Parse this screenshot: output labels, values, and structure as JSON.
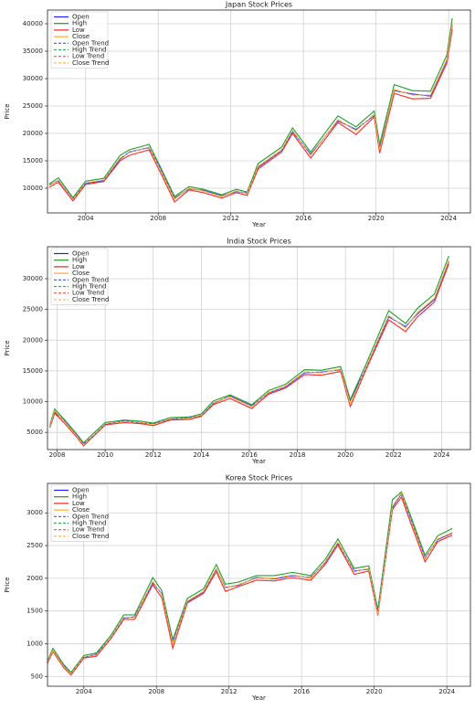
{
  "chart_data": [
    {
      "type": "line",
      "title": "Japan Stock Prices",
      "x_label": "Year",
      "y_label": "Price",
      "grid": true,
      "legend": "upper left",
      "xlim": [
        2001.9,
        2025.2
      ],
      "xticks": [
        2004,
        2008,
        2012,
        2016,
        2020,
        2024
      ],
      "ylim": [
        5500,
        42500
      ],
      "yticks": [
        10000,
        15000,
        20000,
        25000,
        30000,
        35000,
        40000
      ],
      "x": [
        2002.0,
        2002.5,
        2003.3,
        2004.0,
        2005.0,
        2005.9,
        2006.4,
        2007.5,
        2008.1,
        2008.9,
        2009.7,
        2010.5,
        2011.5,
        2012.3,
        2012.9,
        2013.5,
        2014.8,
        2015.4,
        2016.4,
        2017.9,
        2018.9,
        2019.9,
        2020.2,
        2021.0,
        2022.0,
        2023.0,
        2023.9,
        2024.2
      ],
      "series": [
        {
          "name": "Open",
          "color": "#1f1fff",
          "linestyle": "solid",
          "values": [
            10600,
            11400,
            8100,
            10900,
            11400,
            15300,
            16600,
            17400,
            13700,
            8200,
            9900,
            9600,
            8600,
            9400,
            9100,
            13800,
            16900,
            20300,
            16200,
            22300,
            20700,
            23300,
            17400,
            27800,
            27200,
            26800,
            33300,
            39700
          ]
        },
        {
          "name": "High",
          "color": "#1a9a1a",
          "linestyle": "solid",
          "values": [
            10800,
            11900,
            8300,
            11300,
            11800,
            16000,
            17000,
            18000,
            14000,
            8500,
            10300,
            9800,
            8800,
            9800,
            9300,
            14500,
            17500,
            21000,
            16600,
            23200,
            21200,
            24100,
            18000,
            28900,
            27800,
            27700,
            34300,
            41000
          ]
        },
        {
          "name": "Low",
          "color": "#ee2222",
          "linestyle": "solid",
          "values": [
            10200,
            11100,
            7700,
            10700,
            11200,
            15000,
            16000,
            17000,
            13000,
            7500,
            9700,
            9200,
            8200,
            9200,
            8700,
            13500,
            16600,
            20000,
            15500,
            22000,
            19800,
            23000,
            16400,
            27300,
            26300,
            26400,
            32800,
            39000
          ]
        },
        {
          "name": "Close",
          "color": "#ffaa22",
          "linestyle": "solid",
          "values": [
            10500,
            11500,
            8000,
            11000,
            11500,
            15500,
            16500,
            17500,
            13500,
            8000,
            10000,
            9500,
            8500,
            9500,
            9000,
            14000,
            17000,
            20500,
            16000,
            22500,
            20500,
            23500,
            17000,
            28000,
            27000,
            27000,
            33500,
            40000
          ]
        },
        {
          "name": "Open Trend",
          "color": "#3355ff",
          "linestyle": "dashed",
          "values": [
            10600,
            11400,
            8100,
            10900,
            11400,
            15300,
            16600,
            17400,
            13700,
            8200,
            9900,
            9600,
            8600,
            9400,
            9100,
            13800,
            16900,
            20300,
            16200,
            22300,
            20700,
            23300,
            17400,
            27800,
            27200,
            26800,
            33300,
            39700
          ]
        },
        {
          "name": "High Trend",
          "color": "#33aa55",
          "linestyle": "dashed",
          "values": [
            10800,
            11900,
            8300,
            11300,
            11800,
            16000,
            17000,
            18000,
            14000,
            8500,
            10300,
            9800,
            8800,
            9800,
            9300,
            14500,
            17500,
            21000,
            16600,
            23200,
            21200,
            24100,
            18000,
            28900,
            27800,
            27700,
            34300,
            41000
          ]
        },
        {
          "name": "Low Trend",
          "color": "#ff4444",
          "linestyle": "dashed",
          "values": [
            10200,
            11100,
            7700,
            10700,
            11200,
            15000,
            16000,
            17000,
            13000,
            7500,
            9700,
            9200,
            8200,
            9200,
            8700,
            13500,
            16600,
            20000,
            15500,
            22000,
            19800,
            23000,
            16400,
            27300,
            26300,
            26400,
            32800,
            39000
          ]
        },
        {
          "name": "Close Trend",
          "color": "#ffbb55",
          "linestyle": "dashed",
          "values": [
            10500,
            11500,
            8000,
            11000,
            11500,
            15500,
            16500,
            17500,
            13500,
            8000,
            10000,
            9500,
            8500,
            9500,
            9000,
            14000,
            17000,
            20500,
            16000,
            22500,
            20500,
            23500,
            17000,
            28000,
            27000,
            27000,
            33500,
            40000
          ]
        }
      ]
    },
    {
      "type": "line",
      "title": "India Stock Prices",
      "x_label": "Year",
      "y_label": "Price",
      "grid": true,
      "legend": "upper left",
      "xlim": [
        2007.6,
        2025.2
      ],
      "xticks": [
        2008,
        2010,
        2012,
        2014,
        2016,
        2018,
        2020,
        2022,
        2024
      ],
      "ylim": [
        2200,
        35200
      ],
      "yticks": [
        5000,
        10000,
        15000,
        20000,
        25000,
        30000
      ],
      "x": [
        2007.7,
        2007.9,
        2008.3,
        2008.8,
        2009.1,
        2009.5,
        2010.0,
        2010.8,
        2011.5,
        2012.0,
        2012.7,
        2013.5,
        2014.0,
        2014.5,
        2015.2,
        2016.1,
        2016.8,
        2017.5,
        2018.3,
        2019.0,
        2019.8,
        2020.2,
        2020.9,
        2021.8,
        2022.5,
        2023.0,
        2023.7,
        2024.3
      ],
      "series": [
        {
          "name": "Open",
          "color": "#1f1fff",
          "linestyle": "solid",
          "values": [
            5900,
            8300,
            6900,
            4700,
            3100,
            4400,
            6300,
            6900,
            6500,
            6400,
            7100,
            7400,
            7700,
            9700,
            10900,
            9300,
            11400,
            12400,
            14700,
            14800,
            15200,
            10200,
            15800,
            23800,
            22200,
            24300,
            26600,
            32800
          ]
        },
        {
          "name": "High",
          "color": "#1a9a1a",
          "linestyle": "solid",
          "values": [
            6200,
            8800,
            7100,
            4800,
            3300,
            4800,
            6600,
            7000,
            6800,
            6500,
            7400,
            7500,
            8000,
            10100,
            11100,
            9500,
            11800,
            12800,
            15200,
            15100,
            15700,
            10300,
            16500,
            24800,
            22700,
            25200,
            27500,
            33700
          ]
        },
        {
          "name": "Low",
          "color": "#ee2222",
          "linestyle": "solid",
          "values": [
            5800,
            8100,
            6500,
            4300,
            2800,
            4300,
            6200,
            6600,
            6400,
            6100,
            7000,
            7100,
            7600,
            9500,
            10500,
            8900,
            11200,
            12200,
            14400,
            14300,
            14900,
            9200,
            15600,
            23300,
            21400,
            23800,
            26200,
            32400
          ]
        },
        {
          "name": "Close",
          "color": "#ffaa22",
          "linestyle": "solid",
          "values": [
            6000,
            8500,
            6800,
            4500,
            3000,
            4500,
            6400,
            6800,
            6600,
            6300,
            7200,
            7300,
            7800,
            9800,
            10800,
            9200,
            11500,
            12500,
            14800,
            14700,
            15300,
            9600,
            16000,
            24000,
            22000,
            24500,
            26800,
            33000
          ]
        },
        {
          "name": "Open Trend",
          "color": "#3355ff",
          "linestyle": "dashed",
          "values": [
            5900,
            8300,
            6900,
            4700,
            3100,
            4400,
            6300,
            6900,
            6500,
            6400,
            7100,
            7400,
            7700,
            9700,
            10900,
            9300,
            11400,
            12400,
            14700,
            14800,
            15200,
            10200,
            15800,
            23800,
            22200,
            24300,
            26600,
            32800
          ]
        },
        {
          "name": "High Trend",
          "color": "#33aa55",
          "linestyle": "dashed",
          "values": [
            6200,
            8800,
            7100,
            4800,
            3300,
            4800,
            6600,
            7000,
            6800,
            6500,
            7400,
            7500,
            8000,
            10100,
            11100,
            9500,
            11800,
            12800,
            15200,
            15100,
            15700,
            10300,
            16500,
            24800,
            22700,
            25200,
            27500,
            33700
          ]
        },
        {
          "name": "Low Trend",
          "color": "#ff4444",
          "linestyle": "dashed",
          "values": [
            5800,
            8100,
            6500,
            4300,
            2800,
            4300,
            6200,
            6600,
            6400,
            6100,
            7000,
            7100,
            7600,
            9500,
            10500,
            8900,
            11200,
            12200,
            14400,
            14300,
            14900,
            9200,
            15600,
            23300,
            21400,
            23800,
            26200,
            32400
          ]
        },
        {
          "name": "Close Trend",
          "color": "#ffbb55",
          "linestyle": "dashed",
          "values": [
            6000,
            8500,
            6800,
            4500,
            3000,
            4500,
            6400,
            6800,
            6600,
            6300,
            7200,
            7300,
            7800,
            9800,
            10800,
            9200,
            11500,
            12500,
            14800,
            14700,
            15300,
            9600,
            16000,
            24000,
            22000,
            24500,
            26800,
            33000
          ]
        }
      ]
    },
    {
      "type": "line",
      "title": "Korea Stock Prices",
      "x_label": "Year",
      "y_label": "Price",
      "grid": true,
      "legend": "upper left",
      "xlim": [
        2002.0,
        2025.3
      ],
      "xticks": [
        2004,
        2008,
        2012,
        2016,
        2020,
        2024
      ],
      "ylim": [
        350,
        3450
      ],
      "yticks": [
        500,
        1000,
        1500,
        2000,
        2500,
        3000
      ],
      "x": [
        2002.0,
        2002.3,
        2002.9,
        2003.3,
        2004.0,
        2004.7,
        2005.5,
        2006.2,
        2006.8,
        2007.8,
        2008.3,
        2008.9,
        2009.7,
        2010.6,
        2011.3,
        2011.8,
        2012.5,
        2013.5,
        2014.5,
        2015.5,
        2016.5,
        2017.3,
        2018.0,
        2018.9,
        2019.7,
        2020.2,
        2021.0,
        2021.5,
        2022.0,
        2022.8,
        2023.5,
        2024.3
      ],
      "series": [
        {
          "name": "Open",
          "color": "#1f1fff",
          "linestyle": "solid",
          "values": [
            710,
            890,
            670,
            550,
            790,
            840,
            1090,
            1390,
            1410,
            1930,
            1760,
            1020,
            1640,
            1790,
            2140,
            1860,
            1890,
            2010,
            1990,
            2040,
            2010,
            2240,
            2540,
            2110,
            2140,
            1500,
            3080,
            3290,
            2910,
            2310,
            2590,
            2690
          ]
        },
        {
          "name": "High",
          "color": "#1a9a1a",
          "linestyle": "solid",
          "values": [
            740,
            930,
            680,
            560,
            820,
            860,
            1130,
            1440,
            1440,
            2010,
            1810,
            1060,
            1690,
            1840,
            2210,
            1910,
            1940,
            2040,
            2040,
            2090,
            2040,
            2290,
            2600,
            2150,
            2190,
            1520,
            3200,
            3320,
            2960,
            2350,
            2650,
            2760
          ]
        },
        {
          "name": "Low",
          "color": "#ee2222",
          "linestyle": "solid",
          "values": [
            700,
            880,
            630,
            520,
            780,
            810,
            1080,
            1370,
            1370,
            1900,
            1700,
            930,
            1620,
            1770,
            2100,
            1800,
            1870,
            1970,
            1960,
            2010,
            1970,
            2210,
            2510,
            2060,
            2110,
            1430,
            3050,
            3240,
            2850,
            2250,
            2560,
            2660
          ]
        },
        {
          "name": "Close",
          "color": "#ffaa22",
          "linestyle": "solid",
          "values": [
            720,
            900,
            650,
            540,
            800,
            830,
            1100,
            1400,
            1400,
            1950,
            1750,
            1000,
            1650,
            1800,
            2150,
            1850,
            1900,
            2000,
            2000,
            2050,
            2000,
            2250,
            2550,
            2100,
            2150,
            1450,
            3100,
            3300,
            2900,
            2300,
            2600,
            2700
          ]
        },
        {
          "name": "Open Trend",
          "color": "#3355ff",
          "linestyle": "dashed",
          "values": [
            710,
            890,
            670,
            550,
            790,
            840,
            1090,
            1390,
            1410,
            1930,
            1760,
            1020,
            1640,
            1790,
            2140,
            1860,
            1890,
            2010,
            1990,
            2040,
            2010,
            2240,
            2540,
            2110,
            2140,
            1500,
            3080,
            3290,
            2910,
            2310,
            2590,
            2690
          ]
        },
        {
          "name": "High Trend",
          "color": "#33aa55",
          "linestyle": "dashed",
          "values": [
            740,
            930,
            680,
            560,
            820,
            860,
            1130,
            1440,
            1440,
            2010,
            1810,
            1060,
            1690,
            1840,
            2210,
            1910,
            1940,
            2040,
            2040,
            2090,
            2040,
            2290,
            2600,
            2150,
            2190,
            1520,
            3200,
            3320,
            2960,
            2350,
            2650,
            2760
          ]
        },
        {
          "name": "Low Trend",
          "color": "#ff4444",
          "linestyle": "dashed",
          "values": [
            700,
            880,
            630,
            520,
            780,
            810,
            1080,
            1370,
            1370,
            1900,
            1700,
            930,
            1620,
            1770,
            2100,
            1800,
            1870,
            1970,
            1960,
            2010,
            1970,
            2210,
            2510,
            2060,
            2110,
            1430,
            3050,
            3240,
            2850,
            2250,
            2560,
            2660
          ]
        },
        {
          "name": "Close Trend",
          "color": "#ffbb55",
          "linestyle": "dashed",
          "values": [
            720,
            900,
            650,
            540,
            800,
            830,
            1100,
            1400,
            1400,
            1950,
            1750,
            1000,
            1650,
            1800,
            2150,
            1850,
            1900,
            2000,
            2000,
            2050,
            2000,
            2250,
            2550,
            2100,
            2150,
            1450,
            3100,
            3300,
            2900,
            2300,
            2600,
            2700
          ]
        }
      ]
    }
  ]
}
